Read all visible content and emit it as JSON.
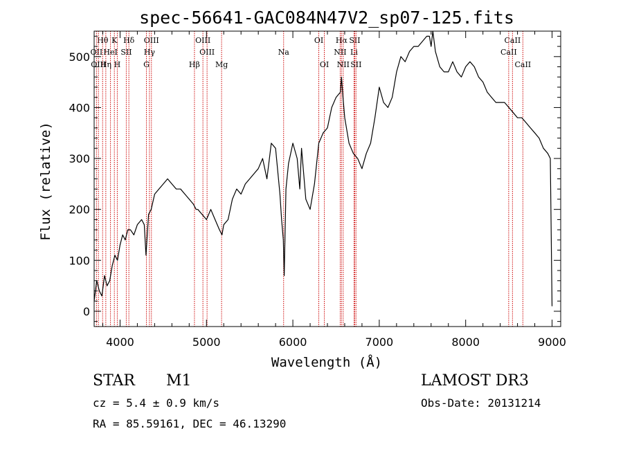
{
  "chart_data": {
    "type": "line",
    "title": "spec-56641-GAC084N47V2_sp07-125.fits",
    "xlabel": "Wavelength (Å)",
    "ylabel": "Flux (relative)",
    "xlim": [
      3700,
      9100
    ],
    "ylim": [
      -30,
      550
    ],
    "x_ticks": [
      "4000",
      "5000",
      "6000",
      "7000",
      "8000",
      "9000"
    ],
    "y_ticks": [
      "0",
      "100",
      "200",
      "300",
      "400",
      "500"
    ],
    "spectrum": {
      "x": [
        3700,
        3730,
        3760,
        3790,
        3820,
        3850,
        3880,
        3910,
        3940,
        3970,
        4000,
        4030,
        4060,
        4090,
        4120,
        4160,
        4200,
        4250,
        4280,
        4300,
        4330,
        4360,
        4400,
        4450,
        4500,
        4550,
        4600,
        4650,
        4700,
        4750,
        4800,
        4850,
        4880,
        4900,
        4950,
        5000,
        5050,
        5100,
        5150,
        5180,
        5200,
        5250,
        5300,
        5350,
        5400,
        5450,
        5500,
        5550,
        5600,
        5650,
        5700,
        5750,
        5800,
        5850,
        5870,
        5890,
        5900,
        5920,
        5950,
        6000,
        6050,
        6080,
        6100,
        6150,
        6200,
        6250,
        6300,
        6350,
        6400,
        6450,
        6500,
        6550,
        6563,
        6580,
        6600,
        6650,
        6700,
        6750,
        6800,
        6850,
        6900,
        6950,
        7000,
        7050,
        7100,
        7150,
        7200,
        7250,
        7300,
        7350,
        7400,
        7450,
        7500,
        7550,
        7580,
        7600,
        7620,
        7650,
        7700,
        7750,
        7800,
        7850,
        7900,
        7950,
        8000,
        8050,
        8100,
        8150,
        8200,
        8250,
        8300,
        8350,
        8400,
        8450,
        8500,
        8550,
        8600,
        8650,
        8700,
        8750,
        8800,
        8850,
        8900,
        8950,
        8980,
        8990,
        9000
      ],
      "y": [
        20,
        60,
        40,
        30,
        70,
        50,
        60,
        90,
        110,
        100,
        130,
        150,
        140,
        160,
        160,
        150,
        170,
        180,
        170,
        110,
        190,
        200,
        230,
        240,
        250,
        260,
        250,
        240,
        240,
        230,
        220,
        210,
        200,
        200,
        190,
        180,
        200,
        180,
        160,
        150,
        170,
        180,
        220,
        240,
        230,
        250,
        260,
        270,
        280,
        300,
        260,
        330,
        320,
        230,
        180,
        140,
        70,
        240,
        290,
        330,
        300,
        240,
        320,
        220,
        200,
        250,
        330,
        350,
        360,
        400,
        420,
        430,
        460,
        420,
        380,
        330,
        310,
        300,
        280,
        310,
        330,
        380,
        440,
        410,
        400,
        420,
        470,
        500,
        490,
        510,
        520,
        520,
        530,
        540,
        540,
        520,
        550,
        510,
        480,
        470,
        470,
        490,
        470,
        460,
        480,
        490,
        480,
        460,
        450,
        430,
        420,
        410,
        410,
        410,
        400,
        390,
        380,
        380,
        370,
        360,
        350,
        340,
        320,
        310,
        300,
        150,
        10
      ]
    },
    "lines": [
      {
        "name": "Hθ",
        "wavelength": 3798,
        "row": 1
      },
      {
        "name": "K",
        "wavelength": 3934,
        "row": 1
      },
      {
        "name": "Hδ",
        "wavelength": 4102,
        "row": 1
      },
      {
        "name": "OIII",
        "wavelength": 4363,
        "row": 1
      },
      {
        "name": "OIII",
        "wavelength": 4959,
        "row": 1
      },
      {
        "name": "OI",
        "wavelength": 6300,
        "row": 1
      },
      {
        "name": "Hα",
        "wavelength": 6563,
        "row": 1
      },
      {
        "name": "SII",
        "wavelength": 6716,
        "row": 1
      },
      {
        "name": "CaII",
        "wavelength": 8542,
        "row": 1
      },
      {
        "name": "OII",
        "wavelength": 3727,
        "row": 2
      },
      {
        "name": "HeI",
        "wavelength": 3889,
        "row": 2
      },
      {
        "name": "SII",
        "wavelength": 4072,
        "row": 2
      },
      {
        "name": "Hγ",
        "wavelength": 4340,
        "row": 2
      },
      {
        "name": "OIII",
        "wavelength": 5007,
        "row": 2
      },
      {
        "name": "Na",
        "wavelength": 5893,
        "row": 2
      },
      {
        "name": "NII",
        "wavelength": 6548,
        "row": 2
      },
      {
        "name": "Li",
        "wavelength": 6708,
        "row": 2
      },
      {
        "name": "CaII",
        "wavelength": 8498,
        "row": 2
      },
      {
        "name": "OIII",
        "wavelength": 3750,
        "row": 3
      },
      {
        "name": "Hη",
        "wavelength": 3835,
        "row": 3
      },
      {
        "name": "H",
        "wavelength": 3968,
        "row": 3
      },
      {
        "name": "G",
        "wavelength": 4305,
        "row": 3
      },
      {
        "name": "Hβ",
        "wavelength": 4861,
        "row": 3
      },
      {
        "name": "Mg",
        "wavelength": 5175,
        "row": 3
      },
      {
        "name": "OI",
        "wavelength": 6364,
        "row": 3
      },
      {
        "name": "NII",
        "wavelength": 6583,
        "row": 3
      },
      {
        "name": "SII",
        "wavelength": 6731,
        "row": 3
      },
      {
        "name": "CaII",
        "wavelength": 8662,
        "row": 3
      }
    ],
    "line_color": "#cc0000",
    "trace_color": "#000000"
  },
  "info": {
    "object_class": "STAR",
    "subclass": "M1",
    "survey": "LAMOST DR3",
    "cz": "cz = 5.4 ± 0.9 km/s",
    "obs_date": "Obs-Date: 20131214",
    "coords": "RA =  85.59161, DEC =  46.13290"
  }
}
